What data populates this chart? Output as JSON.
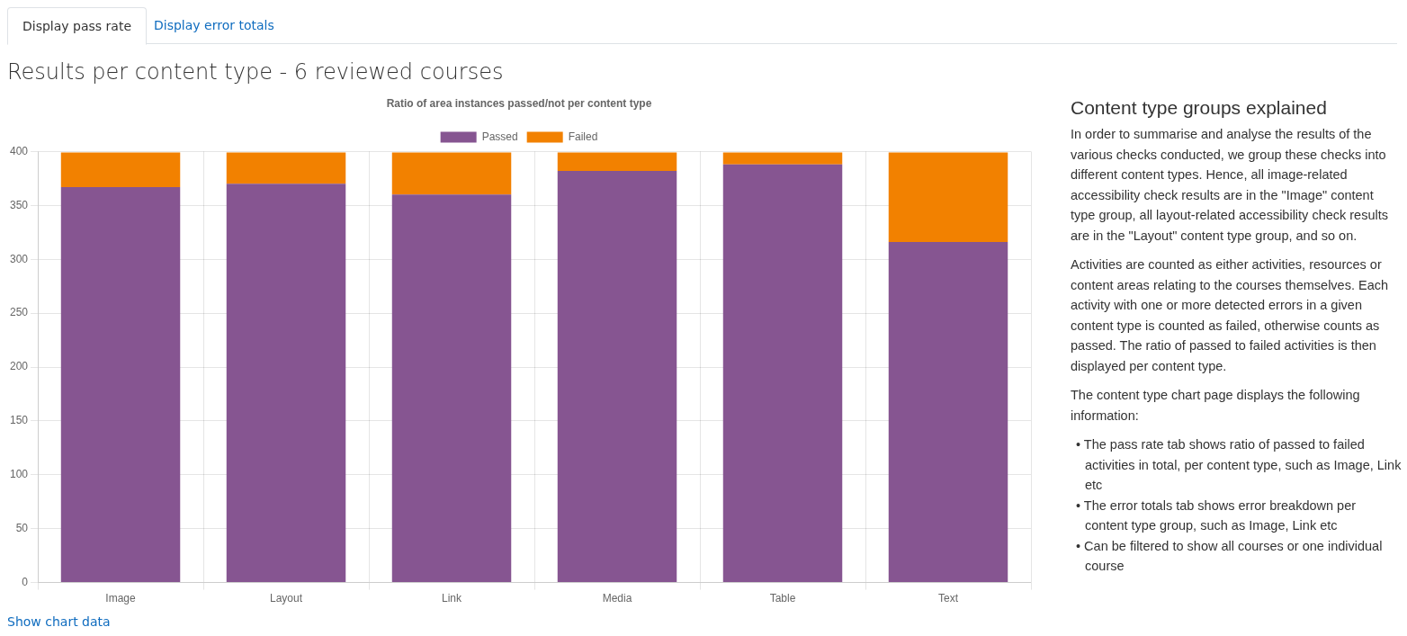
{
  "chart_data": {
    "type": "bar",
    "title": "Ratio of area instances passed/not per content type",
    "categories": [
      "Image",
      "Layout",
      "Link",
      "Media",
      "Table",
      "Text"
    ],
    "series": [
      {
        "name": "Passed",
        "color": "#865591",
        "values": [
          367,
          370,
          360,
          382,
          388,
          316
        ]
      },
      {
        "name": "Failed",
        "color": "#f28100",
        "values": [
          32,
          29,
          39,
          17,
          11,
          83
        ]
      }
    ],
    "stacked": true,
    "ylim": [
      0,
      400
    ],
    "yticks": [
      0,
      50,
      100,
      150,
      200,
      250,
      300,
      350,
      400
    ],
    "grid": true,
    "legend": "top",
    "annotations": [
      "Display pass rate",
      "Display error totals",
      "Results per content type - 6 reviewed courses",
      "Content type groups explained",
      "In order to summarise and analyse the results of the various checks conducted, we group these checks into different content types. Hence, all image-related accessibility check results are in the \"Image\" content type group, all layout-related accessibility check results are in the \"Layout\" content type group, and so on.",
      "Activities are counted as either activities, resources or content areas relating to the courses themselves. Each activity with one or more detected errors in a given content type is counted as failed, otherwise counts as passed. The ratio of passed to failed activities is then displayed per content type.",
      "The content type chart page displays the following information:",
      "• The pass rate tab shows ratio of passed to failed activities in total, per content type, such as Image, Link etc",
      "• The error totals tab shows error breakdown per content type group, such as Image, Link etc",
      "• Can be filtered to show all courses or one individual course",
      "Show chart data"
    ]
  }
}
